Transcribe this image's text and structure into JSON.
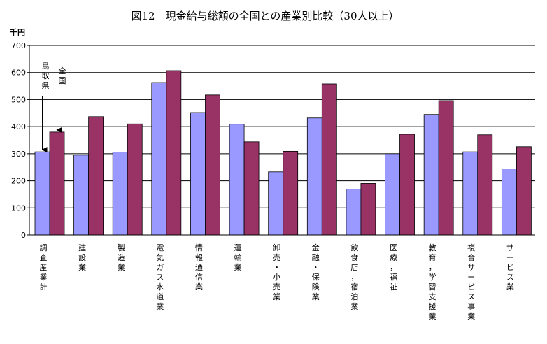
{
  "chart_data": {
    "type": "bar",
    "title": "図12　現金給与総額の全国との産業別比較（30人以上）",
    "unit_label": "千円",
    "ylim": [
      0,
      700
    ],
    "yticks": [
      0,
      100,
      200,
      300,
      400,
      500,
      600,
      700
    ],
    "grid": "horizontal",
    "categories": [
      "調査産業計",
      "建設業",
      "製造業",
      "電気ガス水道業",
      "情報通信業",
      "運輸業",
      "卸売・小売業",
      "金融・保険業",
      "飲食店，宿泊業",
      "医療，福祉",
      "教育，学習支援業",
      "複合サービス事業",
      "サービス業"
    ],
    "series": [
      {
        "name": "鳥取県",
        "color": "#9999ff",
        "values": [
          307,
          295,
          306,
          563,
          452,
          409,
          233,
          432,
          169,
          300,
          445,
          307,
          244
        ]
      },
      {
        "name": "全国",
        "color": "#993366",
        "values": [
          380,
          437,
          410,
          607,
          517,
          344,
          309,
          558,
          190,
          372,
          496,
          370,
          326
        ]
      }
    ],
    "annotations": [
      {
        "text": "鳥取県",
        "series": 0,
        "category": 0
      },
      {
        "text": "全国",
        "series": 1,
        "category": 0
      }
    ]
  }
}
